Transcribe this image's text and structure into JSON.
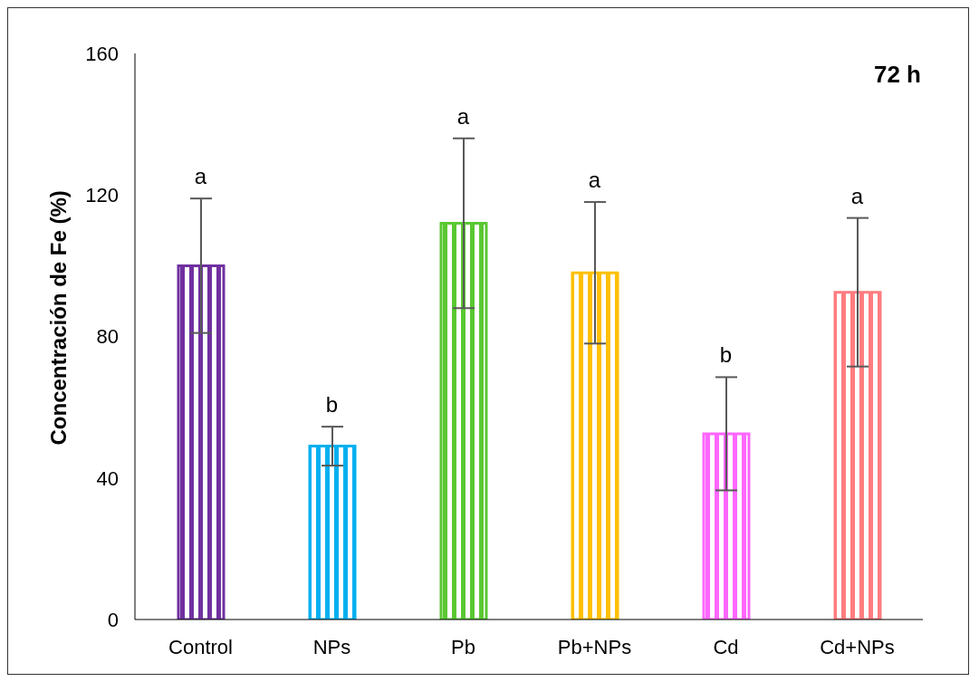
{
  "chart_data": {
    "type": "bar",
    "ylabel": "Concentración de Fe (%)",
    "categories": [
      "Control",
      "NPs",
      "Pb",
      "Pb+NPs",
      "Cd",
      "Cd+NPs"
    ],
    "values": [
      100,
      49,
      112,
      98,
      52.5,
      92.5
    ],
    "errors": [
      19,
      5.5,
      24,
      20,
      16,
      21
    ],
    "colors": [
      "#7030a0",
      "#00b0f0",
      "#5ac832",
      "#ffc000",
      "#ff66ff",
      "#ff7c80"
    ],
    "ylim": [
      0,
      160
    ],
    "yticks": [
      0,
      40,
      80,
      120,
      160
    ],
    "grid": false,
    "legend": false,
    "annotations": [
      "72 h",
      {
        "text": "a",
        "x": "Control",
        "y": 119
      },
      {
        "text": "b",
        "x": "NPs",
        "y": 54.5
      },
      {
        "text": "a",
        "x": "Pb",
        "y": 136
      },
      {
        "text": "a",
        "x": "Pb+NPs",
        "y": 118
      },
      {
        "text": "b",
        "x": "Cd",
        "y": 68.5
      },
      {
        "text": "a",
        "x": "Cd+NPs",
        "y": 113.5
      }
    ]
  }
}
